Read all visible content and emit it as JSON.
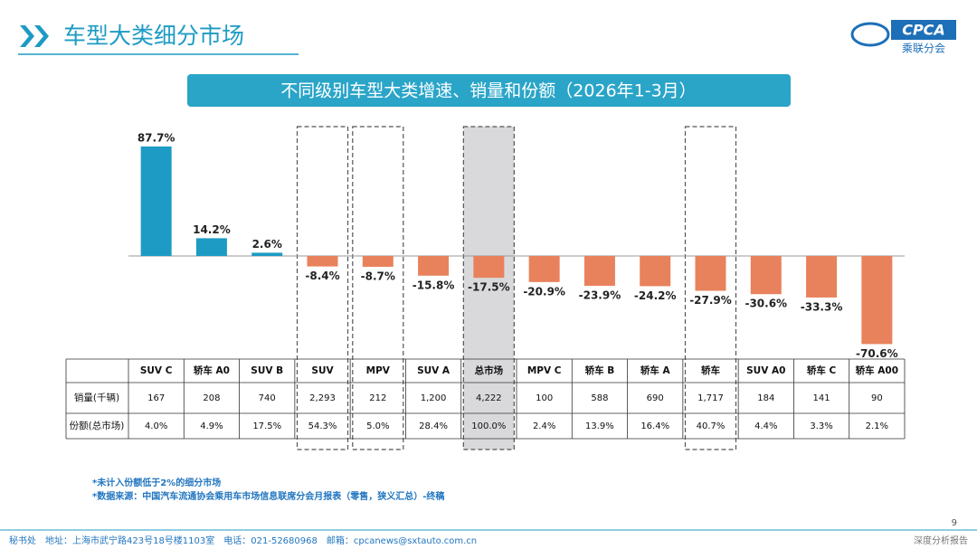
{
  "header": {
    "title": "车型大类细分市场",
    "logo": "CPCA",
    "logo_sub": "乘联分会"
  },
  "chart_data": {
    "type": "bar",
    "title": "不同级别车型大类增速、销量和份额（2026年1-3月）",
    "categories": [
      "SUV C",
      "轿车 A0",
      "SUV B",
      "SUV",
      "MPV",
      "SUV A",
      "总市场",
      "MPV C",
      "轿车 B",
      "轿车 A",
      "轿车",
      "SUV A0",
      "轿车 C",
      "轿车 A00"
    ],
    "values": [
      87.7,
      14.2,
      2.6,
      -8.4,
      -8.7,
      -15.8,
      -17.5,
      -20.9,
      -23.9,
      -24.2,
      -27.9,
      -30.6,
      -33.3,
      -70.6
    ],
    "value_labels": [
      "87.7%",
      "14.2%",
      "2.6%",
      "-8.4%",
      "-8.7%",
      "-15.8%",
      "-17.5%",
      "-20.9%",
      "-23.9%",
      "-24.2%",
      "-27.9%",
      "-30.6%",
      "-33.3%",
      "-70.6%"
    ],
    "color_positive": "#1d9bc4",
    "color_negative": "#e8825c",
    "highlight_columns": [
      3,
      4,
      6,
      10
    ],
    "shaded_column": 6
  },
  "table": {
    "rows": [
      [
        "销量(千辆)",
        "167",
        "208",
        "740",
        "2,293",
        "212",
        "1,200",
        "4,222",
        "100",
        "588",
        "690",
        "1,717",
        "184",
        "141",
        "90"
      ],
      [
        "份额(总市场)",
        "4.0%",
        "4.9%",
        "17.5%",
        "54.3%",
        "5.0%",
        "28.4%",
        "100.0%",
        "2.4%",
        "13.9%",
        "16.4%",
        "40.7%",
        "4.4%",
        "3.3%",
        "2.1%"
      ]
    ]
  },
  "notes": [
    "*未计入份额低于2%的细分市场",
    "*数据来源：中国汽车流通协会乘用车市场信息联席分会月报表（零售，狭义汇总）-终稿"
  ],
  "footer": {
    "address": "秘书处　地址：上海市武宁路423号18号楼1103室　电话：021-52680968　邮箱：cpcanews@sxtauto.com.cn",
    "report": "深度分析报告",
    "page": "9"
  }
}
